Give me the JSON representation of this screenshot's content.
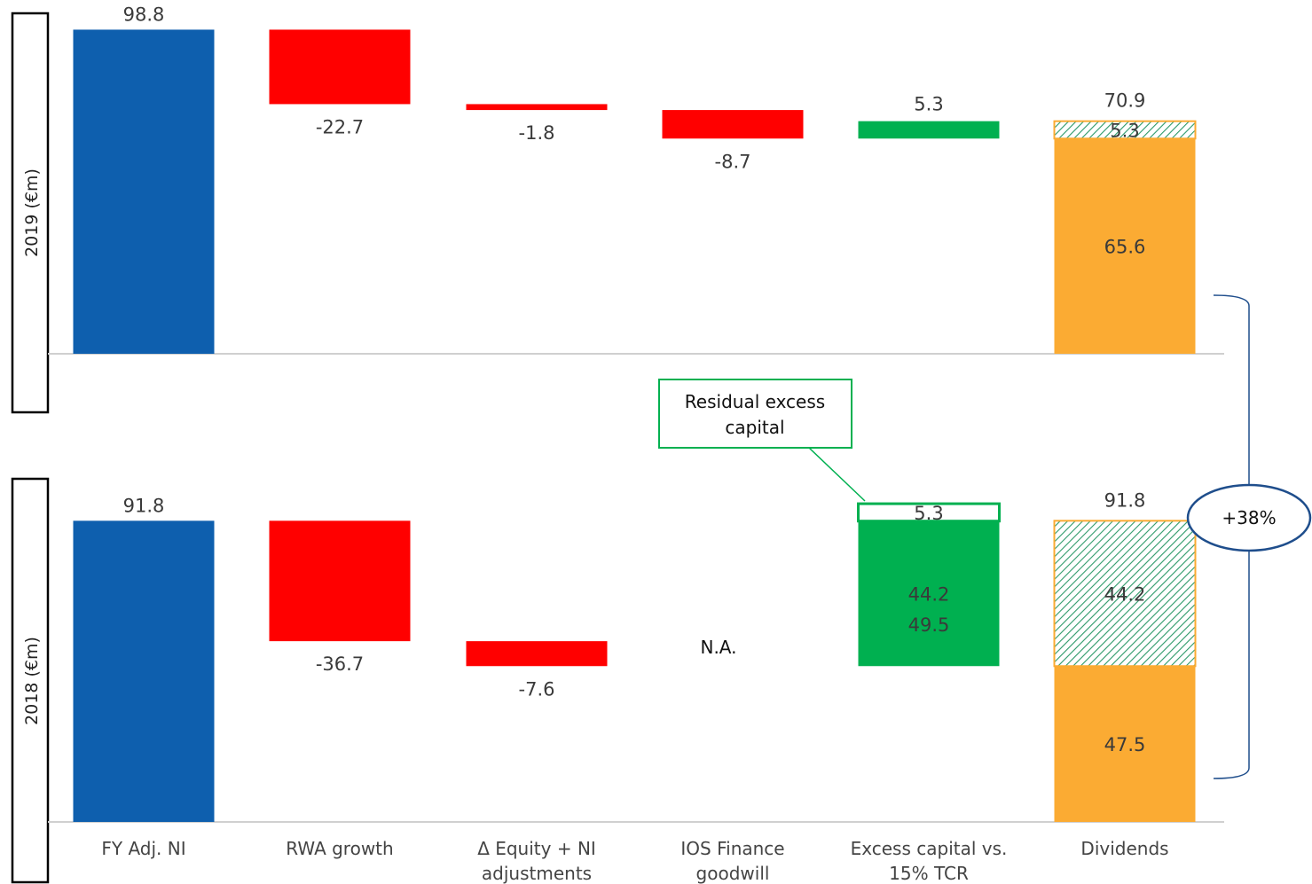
{
  "colors": {
    "base": "#0e5fae",
    "negative": "#ff0000",
    "positive": "#00b050",
    "dividend": "#fbab33",
    "hatch": "#2e9a6a",
    "bracket": "#1f4e8c",
    "axis": "#d0d0d0"
  },
  "chart_data": [
    {
      "type": "bar",
      "panel": "2019",
      "ylabel": "2019 (€m)",
      "categories": [
        "FY Adj. NI",
        "RWA growth",
        "Δ Equity + NI adjustments",
        "IOS Finance goodwill",
        "Excess capital vs. 15% TCR",
        "Dividends"
      ],
      "bars": [
        {
          "category": "FY Adj. NI",
          "kind": "base",
          "low": 0,
          "high": 98.8,
          "label": "98.8"
        },
        {
          "category": "RWA growth",
          "kind": "negative",
          "low": 76.1,
          "high": 98.8,
          "label": "-22.7"
        },
        {
          "category": "Δ Equity + NI adjustments",
          "kind": "negative",
          "low": 74.3,
          "high": 76.1,
          "label": "-1.8"
        },
        {
          "category": "IOS Finance goodwill",
          "kind": "negative",
          "low": 65.6,
          "high": 74.3,
          "label": "-8.7"
        },
        {
          "category": "Excess capital vs. 15% TCR",
          "kind": "positive",
          "low": 65.6,
          "high": 70.9,
          "label": "5.3"
        },
        {
          "category": "Dividends",
          "kind": "dividend",
          "low": 0,
          "high": 65.6,
          "label": "65.6"
        },
        {
          "category": "Dividends",
          "kind": "hatch",
          "low": 65.6,
          "high": 70.9,
          "label": "5.3"
        }
      ],
      "totals": [
        {
          "category": "Dividends",
          "value": 70.9,
          "label": "70.9"
        }
      ]
    },
    {
      "type": "bar",
      "panel": "2018",
      "ylabel": "2018 (€m)",
      "categories": [
        "FY Adj. NI",
        "RWA growth",
        "Δ Equity + NI adjustments",
        "IOS Finance goodwill",
        "Excess capital vs. 15% TCR",
        "Dividends"
      ],
      "bars": [
        {
          "category": "FY Adj. NI",
          "kind": "base",
          "low": 0,
          "high": 91.8,
          "label": "91.8"
        },
        {
          "category": "RWA growth",
          "kind": "negative",
          "low": 55.1,
          "high": 91.8,
          "label": "-36.7"
        },
        {
          "category": "Δ Equity + NI adjustments",
          "kind": "negative",
          "low": 47.5,
          "high": 55.1,
          "label": "-7.6"
        },
        {
          "category": "Excess capital vs. 15% TCR",
          "kind": "positive",
          "low": 47.5,
          "high": 91.7,
          "label": "44.2"
        },
        {
          "category": "Excess capital vs. 15% TCR",
          "kind": "residual",
          "low": 91.7,
          "high": 97.0,
          "label": "5.3"
        },
        {
          "category": "Dividends",
          "kind": "dividend",
          "low": 0,
          "high": 47.5,
          "label": "47.5"
        },
        {
          "category": "Dividends",
          "kind": "hatch",
          "low": 47.5,
          "high": 91.8,
          "label": "44.2"
        }
      ],
      "totals": [
        {
          "category": "Excess capital vs. 15% TCR",
          "value": 49.5,
          "label": "49.5"
        },
        {
          "category": "Dividends",
          "value": 91.8,
          "label": "91.8"
        }
      ],
      "na": {
        "category": "IOS Finance goodwill",
        "label": "N.A."
      }
    }
  ],
  "category_labels": [
    [
      "FY Adj. NI"
    ],
    [
      "RWA growth"
    ],
    [
      "Δ Equity + NI",
      "adjustments"
    ],
    [
      "IOS Finance",
      "goodwill"
    ],
    [
      "Excess capital vs.",
      "15% TCR"
    ],
    [
      "Dividends"
    ]
  ],
  "annotations": {
    "callout_lines": [
      "Residual excess",
      "capital"
    ],
    "growth_badge": "+38%"
  }
}
